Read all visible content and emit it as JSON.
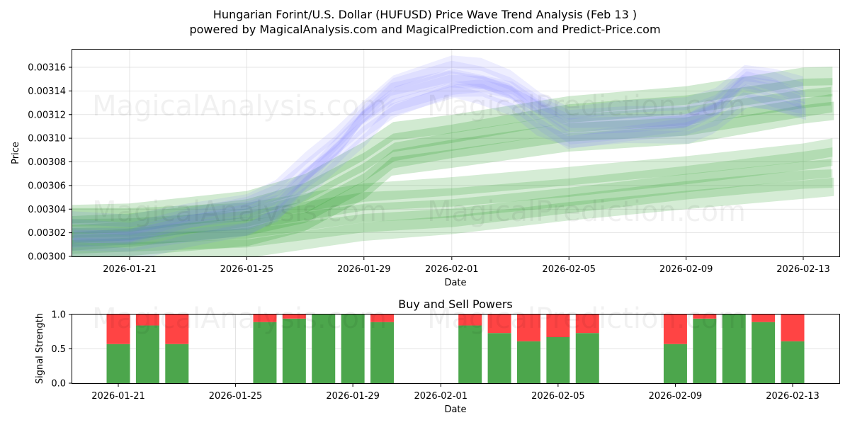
{
  "title_line1": "Hungarian Forint/U.S. Dollar (HUFUSD) Price Wave Trend Analysis (Feb 13 )",
  "title_line2": "powered by MagicalAnalysis.com and MagicalPrediction.com and Predict-Price.com",
  "watermarks": [
    "MagicalAnalysis.com",
    "MagicalPrediction.com"
  ],
  "colors": {
    "blue": "#7070ff",
    "green": "#2ca02c",
    "buy": "#4ca64c",
    "sell": "#ff4444",
    "grid": "#dddddd"
  },
  "chart_data": [
    {
      "type": "area",
      "name": "price-wave",
      "xlabel": "Date",
      "ylabel": "Price",
      "ylim": [
        0.003,
        0.003175
      ],
      "xlim": [
        "2026-01-18",
        "2026-02-14"
      ],
      "x_ticks": [
        "2026-01-21",
        "2026-01-25",
        "2026-01-29",
        "2026-02-01",
        "2026-02-05",
        "2026-02-09",
        "2026-02-13"
      ],
      "y_ticks": [
        "0.00300",
        "0.00302",
        "0.00304",
        "0.00306",
        "0.00308",
        "0.00310",
        "0.00312",
        "0.00314",
        "0.00316"
      ],
      "series": [
        {
          "name": "blue price waves",
          "color": "#7070ff",
          "dates": [
            "2026-01-19",
            "2026-01-21",
            "2026-01-23",
            "2026-01-25",
            "2026-01-26",
            "2026-01-27",
            "2026-01-28",
            "2026-01-29",
            "2026-01-30",
            "2026-02-01",
            "2026-02-02",
            "2026-02-03",
            "2026-02-04",
            "2026-02-05",
            "2026-02-07",
            "2026-02-09",
            "2026-02-10",
            "2026-02-11",
            "2026-02-12",
            "2026-02-13"
          ],
          "values": [
            0.003018,
            0.003017,
            0.003028,
            0.003035,
            0.003045,
            0.003068,
            0.00309,
            0.003115,
            0.003135,
            0.00315,
            0.003148,
            0.00314,
            0.003122,
            0.003108,
            0.003112,
            0.003115,
            0.003125,
            0.003145,
            0.00314,
            0.003132
          ]
        },
        {
          "name": "green upper wave",
          "color": "#2ca02c",
          "dates": [
            "2026-01-18",
            "2026-01-21",
            "2026-01-25",
            "2026-01-27",
            "2026-01-29",
            "2026-01-30",
            "2026-02-01",
            "2026-02-05",
            "2026-02-09",
            "2026-02-13",
            "2026-02-14"
          ],
          "values": [
            0.003022,
            0.003025,
            0.003035,
            0.003048,
            0.003075,
            0.003093,
            0.0031,
            0.003115,
            0.003122,
            0.003138,
            0.00314
          ]
        },
        {
          "name": "green lower wave",
          "color": "#2ca02c",
          "dates": [
            "2026-01-18",
            "2026-01-21",
            "2026-01-25",
            "2026-01-29",
            "2026-02-01",
            "2026-02-05",
            "2026-02-09",
            "2026-02-13",
            "2026-02-14"
          ],
          "values": [
            0.00302,
            0.003021,
            0.003025,
            0.00304,
            0.003045,
            0.003055,
            0.003065,
            0.003075,
            0.003078
          ]
        }
      ]
    },
    {
      "type": "bar",
      "name": "buy-sell-powers",
      "title": "Buy and Sell Powers",
      "xlabel": "Date",
      "ylabel": "Signal Strength",
      "ylim": [
        0,
        1
      ],
      "y_ticks": [
        "0.0",
        "0.5",
        "1.0"
      ],
      "x_ticks": [
        "2026-01-21",
        "2026-01-25",
        "2026-01-29",
        "2026-02-01",
        "2026-02-05",
        "2026-02-09",
        "2026-02-13"
      ],
      "series": [
        {
          "name": "Buy",
          "color": "#4ca64c"
        },
        {
          "name": "Sell",
          "color": "#ff4444"
        }
      ],
      "bars": [
        {
          "date": "2026-01-21",
          "buy": 0.57
        },
        {
          "date": "2026-01-22",
          "buy": 0.84
        },
        {
          "date": "2026-01-23",
          "buy": 0.57
        },
        {
          "date": "2026-01-26",
          "buy": 0.89
        },
        {
          "date": "2026-01-27",
          "buy": 0.94
        },
        {
          "date": "2026-01-28",
          "buy": 1.0
        },
        {
          "date": "2026-01-29",
          "buy": 1.0
        },
        {
          "date": "2026-01-30",
          "buy": 0.89
        },
        {
          "date": "2026-02-02",
          "buy": 0.84
        },
        {
          "date": "2026-02-03",
          "buy": 0.73
        },
        {
          "date": "2026-02-04",
          "buy": 0.61
        },
        {
          "date": "2026-02-05",
          "buy": 0.67
        },
        {
          "date": "2026-02-06",
          "buy": 0.73
        },
        {
          "date": "2026-02-09",
          "buy": 0.57
        },
        {
          "date": "2026-02-10",
          "buy": 0.94
        },
        {
          "date": "2026-02-11",
          "buy": 1.0
        },
        {
          "date": "2026-02-12",
          "buy": 0.89
        },
        {
          "date": "2026-02-13",
          "buy": 0.61
        }
      ]
    }
  ]
}
